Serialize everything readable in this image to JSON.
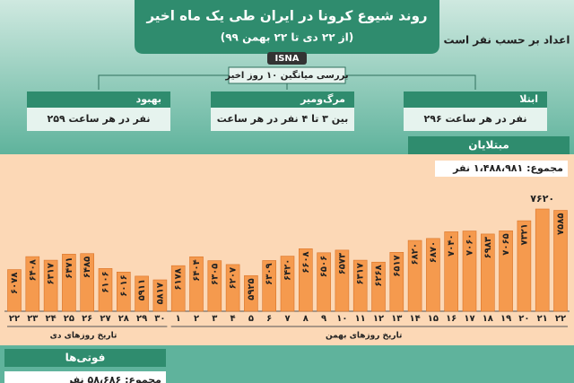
{
  "header": {
    "title": "روند شیوع کرونا در ایران طی یک ماه اخیر",
    "subtitle": "(از ۲۲ دی تا ۲۲ بهمن ۹۹)",
    "source": "ISNA",
    "unit_note": "اعداد بر حسب نفر است",
    "average_note": "بررسی میانگین ۱۰ روز اخیر"
  },
  "boxes": [
    {
      "title": "ابتلا",
      "text": "۲۹۶ نفر در هر ساعت"
    },
    {
      "title": "مرگ‌ومیر",
      "text": "بین ۳ تا ۴ نفر در هر ساعت"
    },
    {
      "title": "بهبود",
      "text": "۲۵۹ نفر در هر ساعت"
    }
  ],
  "panel": {
    "title": "مبتلایان",
    "total": "مجموع: ۱،۴۸۸،۹۸۱ نفر"
  },
  "footer": {
    "title": "فوتی‌ها",
    "total": "مجموع: ۵۸،۶۸۶ نفر"
  },
  "chart_data": [
    {
      "type": "bar",
      "xlabel": "تاریخ روزهای دی",
      "color": "#f59a4e",
      "categories": [
        "۲۲",
        "۲۳",
        "۲۴",
        "۲۵",
        "۲۶",
        "۲۷",
        "۲۸",
        "۲۹",
        "۳۰"
      ],
      "values": [
        6078,
        6408,
        6317,
        6471,
        6485,
        6106,
        6016,
        5911,
        5817
      ],
      "value_labels": [
        "۶۰۷۸",
        "۶۴۰۸",
        "۶۳۱۷",
        "۶۴۷۱",
        "۶۴۸۵",
        "۶۱۰۶",
        "۶۰۱۶",
        "۵۹۱۱",
        "۵۸۱۷"
      ]
    },
    {
      "type": "bar",
      "xlabel": "تاریخ روزهای بهمن",
      "color": "#f59a4e",
      "categories": [
        "۱",
        "۲",
        "۳",
        "۴",
        "۵",
        "۶",
        "۷",
        "۸",
        "۹",
        "۱۰",
        "۱۱",
        "۱۲",
        "۱۳",
        "۱۴",
        "۱۵",
        "۱۶",
        "۱۷",
        "۱۸",
        "۱۹",
        "۲۰",
        "۲۱",
        "۲۲"
      ],
      "values": [
        6178,
        6404,
        6305,
        6207,
        5925,
        6309,
        6420,
        6608,
        6506,
        6573,
        6317,
        6268,
        6517,
        6820,
        6870,
        7040,
        7060,
        6983,
        7065,
        7321,
        7620,
        7585
      ],
      "value_labels": [
        "۶۱۷۸",
        "۶۴۰۴",
        "۶۳۰۵",
        "۶۲۰۷",
        "۵۹۲۵",
        "۶۳۰۹",
        "۶۴۲۰",
        "۶۶۰۸",
        "۶۵۰۶",
        "۶۵۷۳",
        "۶۳۱۷",
        "۶۲۶۸",
        "۶۵۱۷",
        "۶۸۲۰",
        "۶۸۷۰",
        "۷۰۴۰",
        "۷۰۶۰",
        "۶۹۸۳",
        "۷۰۶۵",
        "۷۳۲۱",
        "۷۶۲۰",
        "۷۵۸۵"
      ]
    }
  ]
}
